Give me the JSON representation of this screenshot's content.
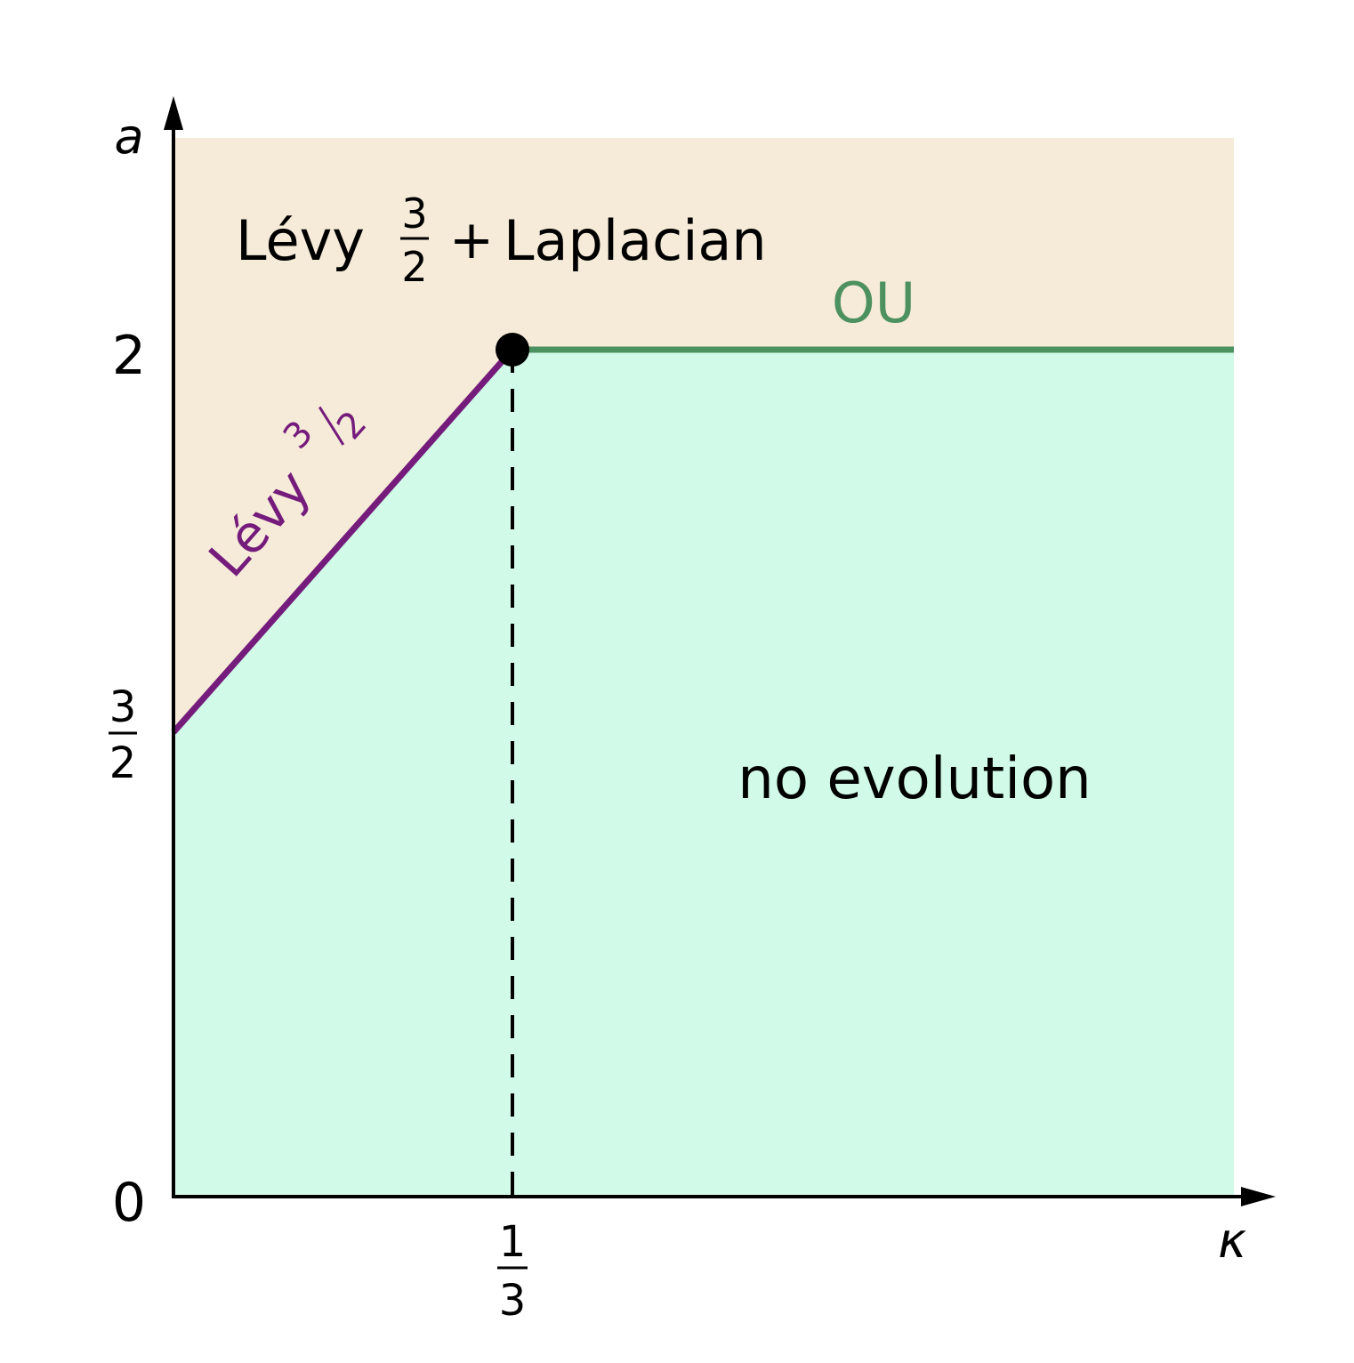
{
  "axes": {
    "y_label": "a",
    "x_label": "κ",
    "y_ticks": [
      {
        "label": "2"
      },
      {
        "numerator": "3",
        "denominator": "2"
      },
      {
        "label": "0"
      }
    ],
    "x_ticks": [
      {
        "numerator": "1",
        "denominator": "3"
      }
    ]
  },
  "regions": {
    "upper": {
      "name": "Lévy",
      "numerator": "3",
      "denominator": "2",
      "operator": "+",
      "rest": "Laplacian"
    },
    "lower": {
      "name": "no evolution"
    }
  },
  "boundaries": {
    "diagonal": {
      "name": "Lévy",
      "numerator": "3",
      "denominator": "2"
    },
    "horizontal": {
      "name": "OU"
    }
  }
}
